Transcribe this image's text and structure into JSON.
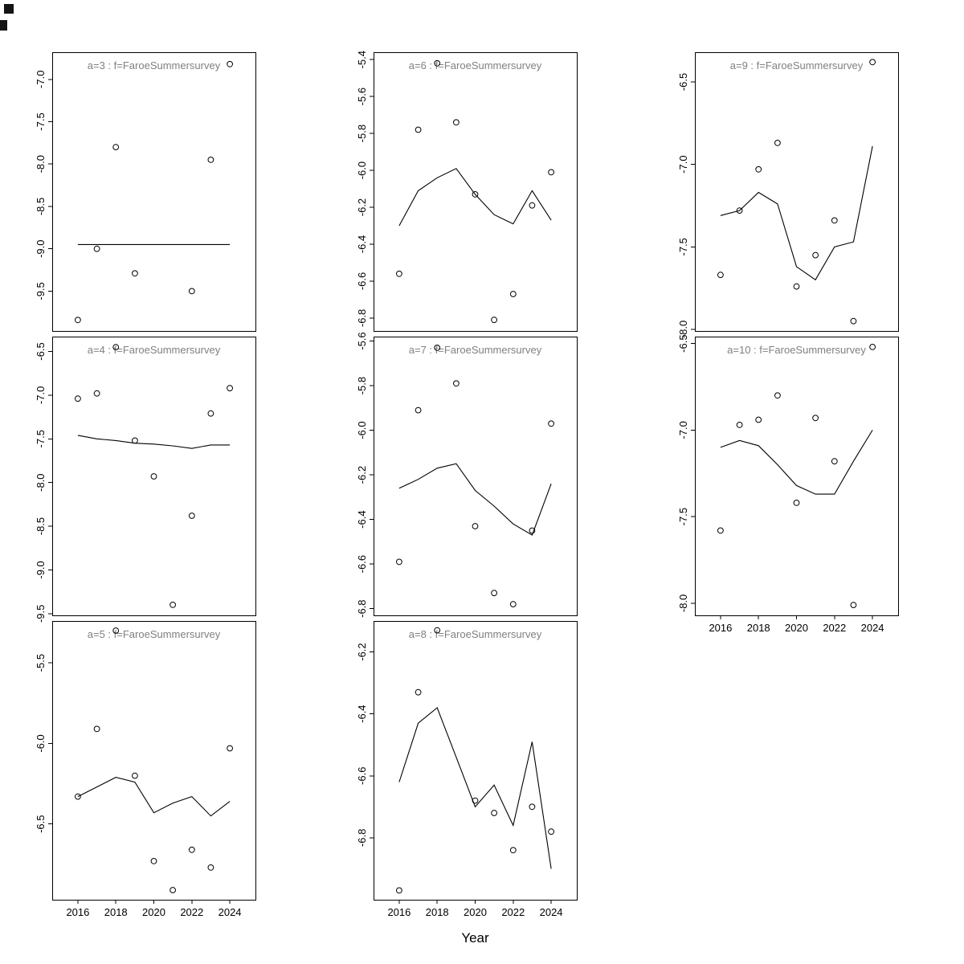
{
  "figure": {
    "background": "#ffffff",
    "axis_color": "#000000",
    "point_color": "#000000",
    "line_color": "#000000",
    "title_color": "#808080"
  },
  "chart_data": {
    "type": "scatter",
    "description": "3x3 grid of age-disaggregated survey fit panels: observed log-index points (open circles) and fitted line per age a=3..10 for fleet f=FaroeSummersurvey; bottom-right cell empty",
    "xlabel": "Year",
    "ylabel": "",
    "grid": false,
    "legend": "none",
    "xlim": [
      2014.65,
      2025.35
    ],
    "years": [
      2016,
      2017,
      2018,
      2019,
      2020,
      2021,
      2022,
      2023,
      2024
    ],
    "x_ticks": [
      2016,
      2018,
      2020,
      2022,
      2024
    ],
    "x_tick_labels": [
      "2016",
      "2018",
      "2020",
      "2022",
      "2024"
    ],
    "panels": [
      {
        "id": "a3",
        "title": "a=3  :  f=FaroeSummersurvey",
        "row": 0,
        "col": 0,
        "ylim": [
          -9.97,
          -6.68
        ],
        "yticks": [
          -7.0,
          -7.5,
          -8.0,
          -8.5,
          -9.0,
          -9.5
        ],
        "ytick_labels": [
          "-7.0",
          "-7.5",
          "-8.0",
          "-8.5",
          "-9.0",
          "-9.5"
        ],
        "show_x_axis": false,
        "points": {
          "x": [
            2016,
            2017,
            2018,
            2019,
            2022,
            2023,
            2024
          ],
          "y": [
            -9.84,
            -9.0,
            -7.8,
            -9.29,
            -9.5,
            -7.95,
            -6.82
          ]
        },
        "line": {
          "y": [
            -8.95,
            -8.95,
            -8.95,
            -8.95,
            -8.95,
            -8.95,
            -8.95,
            -8.95,
            -8.95
          ]
        }
      },
      {
        "id": "a6",
        "title": "a=6  :  f=FaroeSummersurvey",
        "row": 0,
        "col": 1,
        "ylim": [
          -6.87,
          -5.36
        ],
        "yticks": [
          -5.4,
          -5.6,
          -5.8,
          -6.0,
          -6.2,
          -6.4,
          -6.6,
          -6.8
        ],
        "ytick_labels": [
          "-5.4",
          "-5.6",
          "-5.8",
          "-6.0",
          "-6.2",
          "-6.4",
          "-6.6",
          "-6.8"
        ],
        "show_x_axis": false,
        "points": {
          "x": [
            2016,
            2017,
            2018,
            2019,
            2020,
            2021,
            2022,
            2023,
            2024
          ],
          "y": [
            -6.56,
            -5.78,
            -5.42,
            -5.74,
            -6.13,
            -6.81,
            -6.67,
            -6.19,
            -6.01
          ]
        },
        "line": {
          "y": [
            -6.3,
            -6.11,
            -6.04,
            -5.99,
            -6.13,
            -6.24,
            -6.29,
            -6.11,
            -6.27
          ]
        }
      },
      {
        "id": "a9",
        "title": "a=9  :  f=FaroeSummersurvey",
        "row": 0,
        "col": 2,
        "ylim": [
          -8.01,
          -6.32
        ],
        "yticks": [
          -6.5,
          -7.0,
          -7.5,
          -8.0
        ],
        "ytick_labels": [
          "-6.5",
          "-7.0",
          "-7.5",
          "-8.0"
        ],
        "show_x_axis": false,
        "points": {
          "x": [
            2016,
            2017,
            2018,
            2019,
            2020,
            2021,
            2022,
            2023,
            2024
          ],
          "y": [
            -7.67,
            -7.28,
            -7.03,
            -6.87,
            -7.74,
            -7.55,
            -7.34,
            -7.95,
            -6.38
          ]
        },
        "line": {
          "y": [
            -7.31,
            -7.28,
            -7.17,
            -7.24,
            -7.62,
            -7.7,
            -7.5,
            -7.47,
            -6.89
          ]
        }
      },
      {
        "id": "a4",
        "title": "a=4  :  f=FaroeSummersurvey",
        "row": 1,
        "col": 0,
        "ylim": [
          -9.52,
          -6.33
        ],
        "yticks": [
          -6.5,
          -7.0,
          -7.5,
          -8.0,
          -8.5,
          -9.0,
          -9.5
        ],
        "ytick_labels": [
          "-6.5",
          "-7.0",
          "-7.5",
          "-8.0",
          "-8.5",
          "-9.0",
          "-9.5"
        ],
        "show_x_axis": false,
        "points": {
          "x": [
            2016,
            2017,
            2018,
            2019,
            2020,
            2021,
            2022,
            2023,
            2024
          ],
          "y": [
            -7.04,
            -6.98,
            -6.45,
            -7.52,
            -7.93,
            -9.4,
            -8.38,
            -7.21,
            -6.92
          ]
        },
        "line": {
          "y": [
            -7.46,
            -7.5,
            -7.52,
            -7.55,
            -7.56,
            -7.58,
            -7.61,
            -7.57,
            -7.57
          ]
        }
      },
      {
        "id": "a7",
        "title": "a=7  :  f=FaroeSummersurvey",
        "row": 1,
        "col": 1,
        "ylim": [
          -6.83,
          -5.58
        ],
        "yticks": [
          -5.6,
          -5.8,
          -6.0,
          -6.2,
          -6.4,
          -6.6,
          -6.8
        ],
        "ytick_labels": [
          "-5.6",
          "-5.8",
          "-6.0",
          "-6.2",
          "-6.4",
          "-6.6",
          "-6.8"
        ],
        "show_x_axis": false,
        "points": {
          "x": [
            2016,
            2017,
            2018,
            2019,
            2020,
            2021,
            2022,
            2023,
            2024
          ],
          "y": [
            -6.59,
            -5.91,
            -5.63,
            -5.79,
            -6.43,
            -6.73,
            -6.78,
            -6.45,
            -5.97
          ]
        },
        "line": {
          "y": [
            -6.26,
            -6.22,
            -6.17,
            -6.15,
            -6.27,
            -6.34,
            -6.42,
            -6.47,
            -6.24
          ]
        }
      },
      {
        "id": "a10",
        "title": "a=10  :  f=FaroeSummersurvey",
        "row": 1,
        "col": 2,
        "ylim": [
          -8.07,
          -6.46
        ],
        "yticks": [
          -6.5,
          -7.0,
          -7.5,
          -8.0
        ],
        "ytick_labels": [
          "-6.5",
          "-7.0",
          "-7.5",
          "-8.0"
        ],
        "show_x_axis": true,
        "points": {
          "x": [
            2016,
            2017,
            2018,
            2019,
            2020,
            2021,
            2022,
            2023,
            2024
          ],
          "y": [
            -7.58,
            -6.97,
            -6.94,
            -6.8,
            -7.42,
            -6.93,
            -7.18,
            -8.01,
            -6.52
          ]
        },
        "line": {
          "y": [
            -7.1,
            -7.06,
            -7.09,
            -7.2,
            -7.32,
            -7.37,
            -7.37,
            -7.18,
            -7.0
          ]
        }
      },
      {
        "id": "a5",
        "title": "a=5  :  f=FaroeSummersurvey",
        "row": 2,
        "col": 0,
        "ylim": [
          -6.97,
          -5.24
        ],
        "yticks": [
          -5.5,
          -6.0,
          -6.5
        ],
        "ytick_labels": [
          "-5.5",
          "-6.0",
          "-6.5"
        ],
        "show_x_axis": true,
        "points": {
          "x": [
            2016,
            2017,
            2018,
            2019,
            2020,
            2021,
            2022,
            2023,
            2024
          ],
          "y": [
            -6.33,
            -5.91,
            -5.3,
            -6.2,
            -6.73,
            -6.91,
            -6.66,
            -6.77,
            -6.03
          ]
        },
        "line": {
          "y": [
            -6.33,
            -6.27,
            -6.21,
            -6.24,
            -6.43,
            -6.37,
            -6.33,
            -6.45,
            -6.36
          ]
        }
      },
      {
        "id": "a8",
        "title": "a=8  :  f=FaroeSummersurvey",
        "row": 2,
        "col": 1,
        "ylim": [
          -7.0,
          -6.1
        ],
        "yticks": [
          -6.2,
          -6.4,
          -6.6,
          -6.8
        ],
        "ytick_labels": [
          "-6.2",
          "-6.4",
          "-6.6",
          "-6.8"
        ],
        "show_x_axis": true,
        "points": {
          "x": [
            2016,
            2017,
            2018,
            2020,
            2021,
            2022,
            2023,
            2024
          ],
          "y": [
            -6.97,
            -6.33,
            -6.13,
            -6.68,
            -6.72,
            -6.84,
            -6.7,
            -6.78
          ]
        },
        "line": {
          "y": [
            -6.62,
            -6.43,
            -6.38,
            -6.54,
            -6.7,
            -6.63,
            -6.76,
            -6.49,
            -6.9
          ]
        }
      }
    ]
  }
}
